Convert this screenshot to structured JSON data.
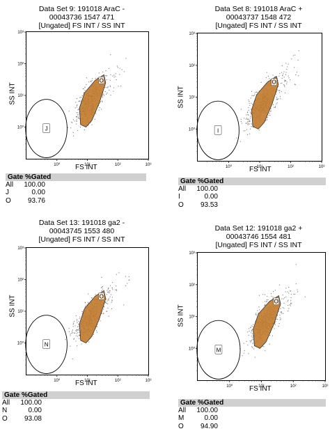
{
  "chart_data": [
    {
      "type": "scatter",
      "title_lines": [
        "Data Set 9: 191018 AraC -",
        "00043736 1547 471",
        "[Ungated] FS INT / SS INT"
      ],
      "xlabel": "FS INT",
      "ylabel": "SS INT",
      "x_scale": "log",
      "y_scale": "log",
      "xlim": [
        0.1,
        1000
      ],
      "ylim": [
        0.1,
        1000
      ],
      "xticks": [
        "10⁰",
        "10¹",
        "10²",
        "10³"
      ],
      "yticks": [
        "10⁰",
        "10¹",
        "10²",
        "10³"
      ],
      "gates": [
        {
          "name": "J",
          "shape": "ellipse"
        },
        {
          "name": "O",
          "shape": "polygon"
        }
      ],
      "stats_header": "Gate %Gated",
      "stats": [
        {
          "gate": "All",
          "value": "100.00"
        },
        {
          "gate": "J",
          "value": "0.00"
        },
        {
          "gate": "O",
          "value": "93.76"
        }
      ]
    },
    {
      "type": "scatter",
      "title_lines": [
        "Data Set 8: 191018 AraC +",
        "00043737 1548 472",
        "[Ungated] FS INT / SS INT"
      ],
      "xlabel": "FS INT",
      "ylabel": "SS INT",
      "x_scale": "log",
      "y_scale": "log",
      "xlim": [
        0.1,
        1000
      ],
      "ylim": [
        0.1,
        1000
      ],
      "xticks": [
        "10⁰",
        "10¹",
        "10²",
        "10³"
      ],
      "yticks": [
        "10⁰",
        "10¹",
        "10²",
        "10³"
      ],
      "gates": [
        {
          "name": "I",
          "shape": "ellipse"
        },
        {
          "name": "O",
          "shape": "polygon"
        }
      ],
      "stats_header": "Gate %Gated",
      "stats": [
        {
          "gate": "All",
          "value": "100.00"
        },
        {
          "gate": "I",
          "value": "0.00"
        },
        {
          "gate": "O",
          "value": "93.53"
        }
      ]
    },
    {
      "type": "scatter",
      "title_lines": [
        "Data Set 13: 191018 ga2 -",
        "00043745 1553 480",
        "[Ungated] FS INT / SS INT"
      ],
      "xlabel": "FS INT",
      "ylabel": "SS INT",
      "x_scale": "log",
      "y_scale": "log",
      "xlim": [
        0.1,
        1000
      ],
      "ylim": [
        0.1,
        1000
      ],
      "xticks": [
        "10⁰",
        "10¹",
        "10²",
        "10³"
      ],
      "yticks": [
        "10⁰",
        "10¹",
        "10²",
        "10³"
      ],
      "gates": [
        {
          "name": "N",
          "shape": "ellipse"
        },
        {
          "name": "O",
          "shape": "polygon"
        }
      ],
      "stats_header": "Gate %Gated",
      "stats": [
        {
          "gate": "All",
          "value": "100.00"
        },
        {
          "gate": "N",
          "value": "0.00"
        },
        {
          "gate": "O",
          "value": "93.08"
        }
      ]
    },
    {
      "type": "scatter",
      "title_lines": [
        "Data Set 12: 191018 ga2 +",
        "00043746 1554 481",
        "[Ungated] FS INT / SS INT"
      ],
      "xlabel": "FS INT",
      "ylabel": "SS INT",
      "x_scale": "log",
      "y_scale": "log",
      "xlim": [
        0.1,
        1000
      ],
      "ylim": [
        0.1,
        1000
      ],
      "xticks": [
        "10⁰",
        "10¹",
        "10²",
        "10³"
      ],
      "yticks": [
        "10⁰",
        "10¹",
        "10²",
        "10³"
      ],
      "gates": [
        {
          "name": "M",
          "shape": "ellipse"
        },
        {
          "name": "O",
          "shape": "polygon"
        }
      ],
      "stats_header": "Gate %Gated",
      "stats": [
        {
          "gate": "All",
          "value": "100.00"
        },
        {
          "gate": "M",
          "value": "0.00"
        },
        {
          "gate": "O",
          "value": "94.90"
        }
      ]
    }
  ],
  "colors": {
    "gate_fill": "#c27a2c",
    "gate_stroke": "#333333",
    "events": "#7a7a7a",
    "stats_header_bg": "#d0d0d0"
  }
}
